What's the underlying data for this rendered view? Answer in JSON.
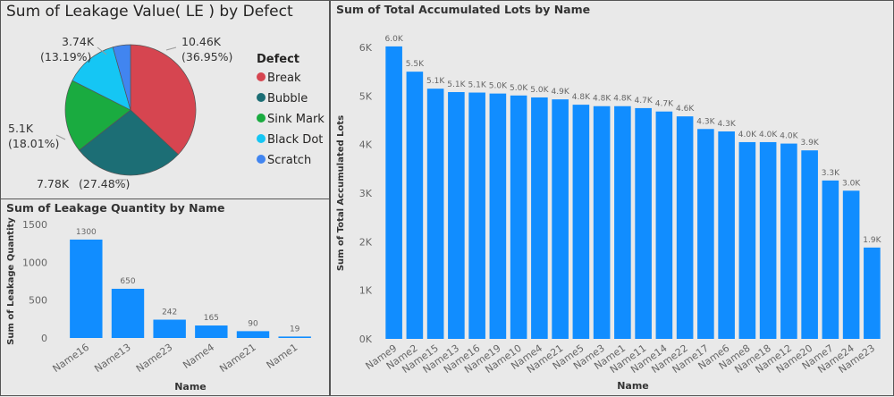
{
  "chart_data": [
    {
      "type": "pie",
      "title": "Sum of Leakage Value( LE ) by Defect",
      "legend_title": "Defect",
      "legend_position": "right",
      "slices": [
        {
          "name": "Break",
          "label": "10.46K",
          "percent_label": "(36.95%)",
          "percent": 36.95,
          "color": "#d64550"
        },
        {
          "name": "Bubble",
          "label": "7.78K",
          "percent_label": "(27.48%)",
          "percent": 27.48,
          "color": "#1c6e75"
        },
        {
          "name": "Sink Mark",
          "label": "5.1K",
          "percent_label": "(18.01%)",
          "percent": 18.01,
          "color": "#1aab40"
        },
        {
          "name": "Black Dot",
          "label": "3.74K",
          "percent_label": "(13.19%)",
          "percent": 13.19,
          "color": "#15c6f4"
        },
        {
          "name": "Scratch",
          "label": "",
          "percent_label": "",
          "percent": 4.37,
          "color": "#4185f0"
        }
      ]
    },
    {
      "type": "bar",
      "title": "Sum of Leakage Quantity by Name",
      "xlabel": "Name",
      "ylabel": "Sum of Leakage Quantity",
      "ylim": [
        0,
        1500
      ],
      "yticks": [
        "0",
        "500",
        "1000",
        "1500"
      ],
      "ytick_values": [
        0,
        500,
        1000,
        1500
      ],
      "categories": [
        "Name16",
        "Name13",
        "Name23",
        "Name4",
        "Name21",
        "Name1"
      ],
      "values": [
        1300,
        650,
        242,
        165,
        90,
        19
      ],
      "data_labels": [
        "1300",
        "650",
        "242",
        "165",
        "90",
        "19"
      ],
      "color": "#118dff",
      "grid": false
    },
    {
      "type": "bar",
      "title": "Sum of Total Accumulated Lots by Name",
      "xlabel": "Name",
      "ylabel": "Sum of Total Accumulated Lots",
      "ylim": [
        0,
        6000
      ],
      "yticks": [
        "0K",
        "1K",
        "2K",
        "3K",
        "4K",
        "5K",
        "6K"
      ],
      "ytick_values": [
        0,
        1000,
        2000,
        3000,
        4000,
        5000,
        6000
      ],
      "categories": [
        "Name9",
        "Name2",
        "Name15",
        "Name13",
        "Name16",
        "Name19",
        "Name10",
        "Name4",
        "Name21",
        "Name5",
        "Name3",
        "Name1",
        "Name11",
        "Name14",
        "Name22",
        "Name17",
        "Name6",
        "Name8",
        "Name18",
        "Name12",
        "Name20",
        "Name7",
        "Name24",
        "Name23"
      ],
      "values": [
        6020,
        5500,
        5150,
        5080,
        5070,
        5050,
        5010,
        4970,
        4930,
        4820,
        4790,
        4790,
        4750,
        4680,
        4580,
        4320,
        4270,
        4050,
        4050,
        4020,
        3880,
        3260,
        3050,
        1880
      ],
      "data_labels": [
        "6.0K",
        "5.5K",
        "5.1K",
        "5.1K",
        "5.1K",
        "5.0K",
        "5.0K",
        "5.0K",
        "4.9K",
        "4.8K",
        "4.8K",
        "4.8K",
        "4.7K",
        "4.7K",
        "4.6K",
        "4.3K",
        "4.3K",
        "4.0K",
        "4.0K",
        "4.0K",
        "3.9K",
        "3.3K",
        "3.0K",
        "1.9K"
      ],
      "color": "#118dff",
      "grid": false
    }
  ]
}
